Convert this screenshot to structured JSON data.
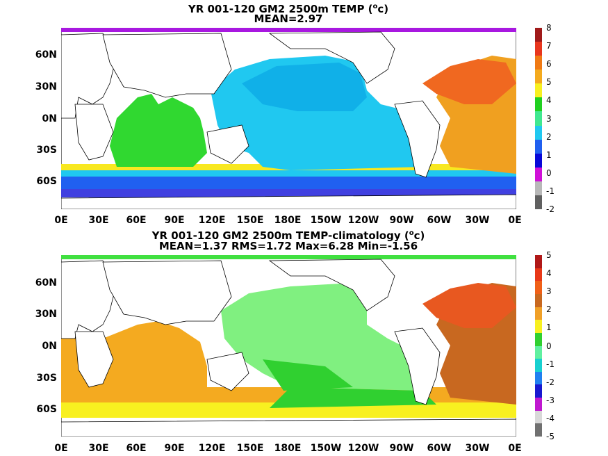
{
  "panels": [
    {
      "title_line1": "YR 001-120 GM2 2500m TEMP (",
      "title_sup": "o",
      "title_line1_end": "c)",
      "title_line2": "MEAN=2.97",
      "colorbar_labels": [
        "8",
        "7",
        "6",
        "5",
        "4",
        "3",
        "2",
        "1",
        "0",
        "-1",
        "-2"
      ],
      "colorbar_colors": [
        "#a01a1a",
        "#e8361e",
        "#f07a14",
        "#f4aa1e",
        "#f8f020",
        "#20d020",
        "#40e890",
        "#20c8f0",
        "#2060f0",
        "#0808d8",
        "#d010d8",
        "#b8b8b8",
        "#606060"
      ],
      "map_style": "absolute"
    },
    {
      "title_line1": "YR 001-120 GM2 2500m TEMP-climatology (",
      "title_sup": "o",
      "title_line1_end": "c)",
      "title_line2": "MEAN=1.37   RMS=1.72   Max=6.28   Min=-1.56",
      "colorbar_labels": [
        "5",
        "4",
        "3",
        "2",
        "1",
        "0",
        "-1",
        "-2",
        "-3",
        "-4",
        "-5"
      ],
      "colorbar_colors": [
        "#b01818",
        "#e83818",
        "#f06018",
        "#c86820",
        "#f0a028",
        "#f8f020",
        "#30d030",
        "#60f0a0",
        "#18d0d0",
        "#2080f0",
        "#1818d0",
        "#c018d0",
        "#d8d8d8",
        "#707070"
      ],
      "map_style": "anomaly"
    }
  ],
  "lat_labels": [
    "60N",
    "30N",
    "0N",
    "30S",
    "60S"
  ],
  "lon_labels": [
    "0E",
    "30E",
    "60E",
    "90E",
    "120E",
    "150E",
    "180E",
    "150W",
    "120W",
    "90W",
    "60W",
    "30W",
    "0E"
  ],
  "colors": {
    "abs_pacific": "#20c8f0",
    "abs_pacific_inner": "#10b0e8",
    "abs_indian": "#30d830",
    "abs_southern": "#2060f0",
    "abs_band": "#f8e820",
    "abs_atlantic": "#f0a020",
    "abs_natl": "#f06820",
    "abs_arctic": "#a818e0",
    "an_pacific": "#80f080",
    "an_green": "#30d030",
    "an_orange": "#f4aa20",
    "an_natl": "#e85820",
    "an_brown": "#c86820",
    "an_yellow": "#f8f020"
  }
}
